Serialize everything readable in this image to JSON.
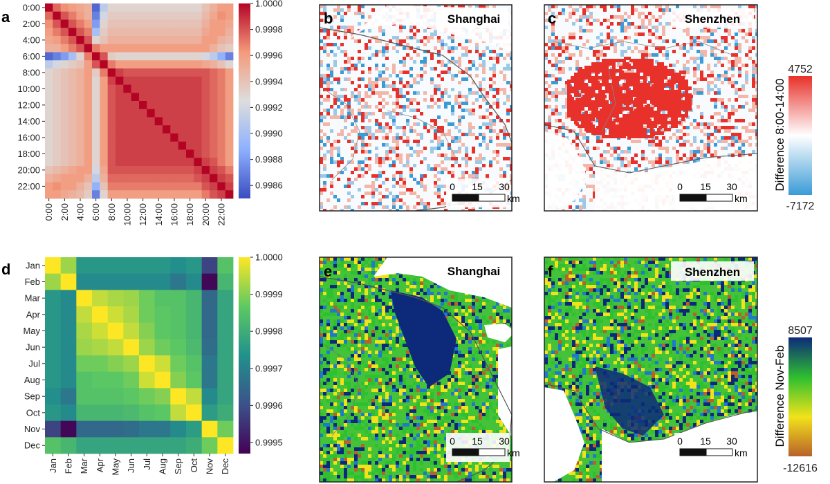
{
  "figure": {
    "panels": {
      "a": "a",
      "b": "b",
      "c": "c",
      "d": "d",
      "e": "e",
      "f": "f"
    },
    "maps": {
      "b": {
        "city": "Shanghai"
      },
      "c": {
        "city": "Shenzhen"
      },
      "e": {
        "city": "Shanghai"
      },
      "f": {
        "city": "Shenzhen"
      }
    },
    "scalebar": {
      "ticks": [
        "0",
        "15",
        "30"
      ],
      "unit": "km"
    },
    "colorbar_top": {
      "label": "Difference 8:00-14:00",
      "max": "4752",
      "min": "-7172",
      "colors": [
        "#3a9bd6",
        "#ffffff",
        "#e8312a"
      ]
    },
    "colorbar_bottom": {
      "label": "Difference Nov-Feb",
      "max": "8507",
      "min": "-12616",
      "colors": [
        "#b8612a",
        "#f2e21a",
        "#2fc02f",
        "#0d2a7a"
      ]
    }
  },
  "chart_data": [
    {
      "panel": "a",
      "type": "heatmap",
      "categories": [
        "0:00",
        "1:00",
        "2:00",
        "3:00",
        "4:00",
        "5:00",
        "6:00",
        "7:00",
        "8:00",
        "9:00",
        "10:00",
        "11:00",
        "12:00",
        "13:00",
        "14:00",
        "15:00",
        "16:00",
        "17:00",
        "18:00",
        "19:00",
        "20:00",
        "21:00",
        "22:00",
        "23:00"
      ],
      "y_tick_labels": [
        "0:00",
        "2:00",
        "4:00",
        "6:00",
        "8:00",
        "10:00",
        "12:00",
        "14:00",
        "16:00",
        "18:00",
        "20:00",
        "22:00"
      ],
      "x_tick_labels": [
        "0:00",
        "2:00",
        "4:00",
        "6:00",
        "8:00",
        "10:00",
        "12:00",
        "14:00",
        "16:00",
        "18:00",
        "20:00",
        "22:00"
      ],
      "colorbar": {
        "min": 0.9985,
        "max": 1.0,
        "ticks": [
          "1.0000",
          "0.9998",
          "0.9996",
          "0.9994",
          "0.9992",
          "0.9990",
          "0.9988",
          "0.9986"
        ],
        "colormap": "coolwarm"
      },
      "values": [
        [
          1,
          0.99975,
          0.99965,
          0.9996,
          0.99955,
          0.9995,
          0.9986,
          0.9991,
          0.9993,
          0.9993,
          0.9993,
          0.9993,
          0.9993,
          0.9993,
          0.9993,
          0.9993,
          0.9993,
          0.9993,
          0.9993,
          0.9993,
          0.9994,
          0.9995,
          0.9996,
          0.9996
        ],
        [
          0.99975,
          1,
          0.9998,
          0.9997,
          0.9996,
          0.9995,
          0.9987,
          0.9992,
          0.99935,
          0.99935,
          0.99935,
          0.99935,
          0.99935,
          0.99935,
          0.99935,
          0.99935,
          0.99935,
          0.99935,
          0.99935,
          0.99935,
          0.99945,
          0.99955,
          0.99965,
          0.9996
        ],
        [
          0.99965,
          0.9998,
          1,
          0.9998,
          0.9997,
          0.9996,
          0.9988,
          0.9993,
          0.9994,
          0.9994,
          0.9994,
          0.9994,
          0.9994,
          0.9994,
          0.9994,
          0.9994,
          0.9994,
          0.9994,
          0.9994,
          0.9994,
          0.9995,
          0.9996,
          0.9996,
          0.99955
        ],
        [
          0.9996,
          0.9997,
          0.9998,
          1,
          0.9998,
          0.9997,
          0.999,
          0.99935,
          0.99945,
          0.99945,
          0.99945,
          0.99945,
          0.99945,
          0.99945,
          0.99945,
          0.99945,
          0.99945,
          0.99945,
          0.99945,
          0.99945,
          0.99955,
          0.9996,
          0.9996,
          0.9995
        ],
        [
          0.99955,
          0.9996,
          0.9997,
          0.9998,
          1,
          0.9998,
          0.9993,
          0.9994,
          0.9995,
          0.9995,
          0.9995,
          0.9995,
          0.9995,
          0.9995,
          0.9995,
          0.9995,
          0.9995,
          0.9995,
          0.9995,
          0.9995,
          0.9996,
          0.9996,
          0.9995,
          0.99945
        ],
        [
          0.9995,
          0.9995,
          0.9996,
          0.9997,
          0.9998,
          1,
          0.9997,
          0.9996,
          0.9996,
          0.9996,
          0.9996,
          0.9996,
          0.9996,
          0.9996,
          0.9996,
          0.9996,
          0.9996,
          0.9996,
          0.9996,
          0.9996,
          0.9996,
          0.9995,
          0.9994,
          0.99935
        ],
        [
          0.9986,
          0.9987,
          0.9988,
          0.999,
          0.9993,
          0.9997,
          1,
          0.9998,
          0.99935,
          0.9993,
          0.9993,
          0.9993,
          0.9993,
          0.9993,
          0.9993,
          0.9993,
          0.9993,
          0.9993,
          0.9993,
          0.9993,
          0.9992,
          0.9991,
          0.9989,
          0.9987
        ],
        [
          0.9991,
          0.9992,
          0.9993,
          0.99935,
          0.9994,
          0.9996,
          0.9998,
          1,
          0.9997,
          0.9996,
          0.9996,
          0.9996,
          0.9996,
          0.9996,
          0.9996,
          0.9996,
          0.9996,
          0.9996,
          0.9996,
          0.9996,
          0.99955,
          0.9995,
          0.9994,
          0.9993
        ],
        [
          0.9993,
          0.99935,
          0.9994,
          0.99945,
          0.9995,
          0.9996,
          0.99935,
          0.9997,
          1,
          0.99985,
          0.9998,
          0.9998,
          0.9998,
          0.9998,
          0.9998,
          0.9998,
          0.9998,
          0.9998,
          0.9998,
          0.9998,
          0.9998,
          0.99975,
          0.9997,
          0.9996
        ],
        [
          0.9993,
          0.99935,
          0.9994,
          0.99945,
          0.9995,
          0.9996,
          0.9993,
          0.9996,
          0.99985,
          1,
          0.99985,
          0.99985,
          0.99985,
          0.99985,
          0.99985,
          0.99985,
          0.99985,
          0.99985,
          0.99985,
          0.99985,
          0.9998,
          0.99975,
          0.9997,
          0.9996
        ],
        [
          0.9993,
          0.99935,
          0.9994,
          0.99945,
          0.9995,
          0.9996,
          0.9993,
          0.9996,
          0.9998,
          0.99985,
          1,
          0.99985,
          0.99985,
          0.99985,
          0.99985,
          0.99985,
          0.99985,
          0.99985,
          0.99985,
          0.99985,
          0.9998,
          0.99975,
          0.9997,
          0.9996
        ],
        [
          0.9993,
          0.99935,
          0.9994,
          0.99945,
          0.9995,
          0.9996,
          0.9993,
          0.9996,
          0.9998,
          0.99985,
          0.99985,
          1,
          0.99985,
          0.99985,
          0.99985,
          0.99985,
          0.99985,
          0.99985,
          0.99985,
          0.99985,
          0.9998,
          0.99975,
          0.9997,
          0.9996
        ],
        [
          0.9993,
          0.99935,
          0.9994,
          0.99945,
          0.9995,
          0.9996,
          0.9993,
          0.9996,
          0.9998,
          0.99985,
          0.99985,
          0.99985,
          1,
          0.99985,
          0.99985,
          0.99985,
          0.99985,
          0.99985,
          0.99985,
          0.99985,
          0.9998,
          0.99975,
          0.9997,
          0.9996
        ],
        [
          0.9993,
          0.99935,
          0.9994,
          0.99945,
          0.9995,
          0.9996,
          0.9993,
          0.9996,
          0.9998,
          0.99985,
          0.99985,
          0.99985,
          0.99985,
          1,
          0.99985,
          0.99985,
          0.99985,
          0.99985,
          0.99985,
          0.99985,
          0.9998,
          0.99975,
          0.9997,
          0.9996
        ],
        [
          0.9993,
          0.99935,
          0.9994,
          0.99945,
          0.9995,
          0.9996,
          0.9993,
          0.9996,
          0.9998,
          0.99985,
          0.99985,
          0.99985,
          0.99985,
          0.99985,
          1,
          0.99985,
          0.99985,
          0.99985,
          0.99985,
          0.99985,
          0.9998,
          0.99975,
          0.9997,
          0.9996
        ],
        [
          0.9993,
          0.99935,
          0.9994,
          0.99945,
          0.9995,
          0.9996,
          0.9993,
          0.9996,
          0.9998,
          0.99985,
          0.99985,
          0.99985,
          0.99985,
          0.99985,
          0.99985,
          1,
          0.99985,
          0.99985,
          0.99985,
          0.99985,
          0.9998,
          0.99975,
          0.9997,
          0.9996
        ],
        [
          0.9993,
          0.99935,
          0.9994,
          0.99945,
          0.9995,
          0.9996,
          0.9993,
          0.9996,
          0.9998,
          0.99985,
          0.99985,
          0.99985,
          0.99985,
          0.99985,
          0.99985,
          0.99985,
          1,
          0.99985,
          0.99985,
          0.99985,
          0.9998,
          0.99975,
          0.9997,
          0.9996
        ],
        [
          0.9993,
          0.99935,
          0.9994,
          0.99945,
          0.9995,
          0.9996,
          0.9993,
          0.9996,
          0.9998,
          0.99985,
          0.99985,
          0.99985,
          0.99985,
          0.99985,
          0.99985,
          0.99985,
          0.99985,
          1,
          0.99985,
          0.99985,
          0.9998,
          0.99975,
          0.9997,
          0.9996
        ],
        [
          0.9993,
          0.99935,
          0.9994,
          0.99945,
          0.9995,
          0.9996,
          0.9993,
          0.9996,
          0.9998,
          0.99985,
          0.99985,
          0.99985,
          0.99985,
          0.99985,
          0.99985,
          0.99985,
          0.99985,
          0.99985,
          1,
          0.99985,
          0.9998,
          0.99975,
          0.9997,
          0.9996
        ],
        [
          0.9993,
          0.99935,
          0.9994,
          0.99945,
          0.9995,
          0.9996,
          0.9993,
          0.9996,
          0.9998,
          0.99985,
          0.99985,
          0.99985,
          0.99985,
          0.99985,
          0.99985,
          0.99985,
          0.99985,
          0.99985,
          0.99985,
          1,
          0.99985,
          0.9998,
          0.9997,
          0.9996
        ],
        [
          0.9994,
          0.99945,
          0.9995,
          0.99955,
          0.9996,
          0.9996,
          0.9992,
          0.99955,
          0.9998,
          0.9998,
          0.9998,
          0.9998,
          0.9998,
          0.9998,
          0.9998,
          0.9998,
          0.9998,
          0.9998,
          0.9998,
          0.99985,
          1,
          0.99985,
          0.9998,
          0.9997
        ],
        [
          0.9995,
          0.99955,
          0.9996,
          0.9996,
          0.9996,
          0.9995,
          0.9991,
          0.9995,
          0.99975,
          0.99975,
          0.99975,
          0.99975,
          0.99975,
          0.99975,
          0.99975,
          0.99975,
          0.99975,
          0.99975,
          0.99975,
          0.9998,
          0.99985,
          1,
          0.99985,
          0.9998
        ],
        [
          0.9996,
          0.99965,
          0.9996,
          0.9996,
          0.9995,
          0.9994,
          0.9989,
          0.9994,
          0.9997,
          0.9997,
          0.9997,
          0.9997,
          0.9997,
          0.9997,
          0.9997,
          0.9997,
          0.9997,
          0.9997,
          0.9997,
          0.9997,
          0.9998,
          0.99985,
          1,
          0.99985
        ],
        [
          0.9996,
          0.9996,
          0.99955,
          0.9995,
          0.99945,
          0.99935,
          0.9987,
          0.9993,
          0.9996,
          0.9996,
          0.9996,
          0.9996,
          0.9996,
          0.9996,
          0.9996,
          0.9996,
          0.9996,
          0.9996,
          0.9996,
          0.9996,
          0.9997,
          0.9998,
          0.99985,
          1
        ]
      ]
    },
    {
      "panel": "d",
      "type": "heatmap",
      "categories": [
        "Jan",
        "Feb",
        "Mar",
        "Apr",
        "May",
        "Jun",
        "Jul",
        "Aug",
        "Sep",
        "Oct",
        "Nov",
        "Dec"
      ],
      "colorbar": {
        "min": 0.99947,
        "max": 1.0,
        "ticks": [
          "1.0000",
          "0.9999",
          "0.9998",
          "0.9997",
          "0.9996",
          "0.9995"
        ],
        "colormap": "viridis"
      },
      "values": [
        [
          1,
          0.99992,
          0.99975,
          0.99975,
          0.99975,
          0.99975,
          0.99975,
          0.99975,
          0.99973,
          0.99975,
          0.99958,
          0.99985
        ],
        [
          0.99992,
          1,
          0.99972,
          0.99972,
          0.99972,
          0.99972,
          0.99972,
          0.99972,
          0.99968,
          0.99972,
          0.99948,
          0.99982
        ],
        [
          0.99975,
          0.99972,
          1,
          0.99995,
          0.99993,
          0.99992,
          0.99988,
          0.99985,
          0.99985,
          0.99982,
          0.99965,
          0.99978
        ],
        [
          0.99975,
          0.99972,
          0.99995,
          1,
          0.99996,
          0.99993,
          0.99988,
          0.99986,
          0.99985,
          0.99982,
          0.99965,
          0.99978
        ],
        [
          0.99975,
          0.99972,
          0.99993,
          0.99996,
          1,
          0.99995,
          0.9999,
          0.99986,
          0.99985,
          0.99982,
          0.99965,
          0.99978
        ],
        [
          0.99975,
          0.99972,
          0.99992,
          0.99993,
          0.99995,
          1,
          0.99992,
          0.99988,
          0.99986,
          0.99983,
          0.99966,
          0.99978
        ],
        [
          0.99975,
          0.99972,
          0.99988,
          0.99988,
          0.9999,
          0.99992,
          1,
          0.99996,
          0.99988,
          0.99985,
          0.99968,
          0.99978
        ],
        [
          0.99975,
          0.99972,
          0.99985,
          0.99986,
          0.99986,
          0.99988,
          0.99996,
          1,
          0.9999,
          0.99986,
          0.99968,
          0.99978
        ],
        [
          0.99973,
          0.99968,
          0.99985,
          0.99985,
          0.99985,
          0.99986,
          0.99988,
          0.9999,
          1,
          0.99995,
          0.99972,
          0.99978
        ],
        [
          0.99975,
          0.99972,
          0.99982,
          0.99982,
          0.99982,
          0.99983,
          0.99985,
          0.99986,
          0.99995,
          1,
          0.99976,
          0.9998
        ],
        [
          0.99958,
          0.99948,
          0.99965,
          0.99965,
          0.99965,
          0.99966,
          0.99968,
          0.99968,
          0.99972,
          0.99976,
          1,
          0.99988
        ],
        [
          0.99985,
          0.99982,
          0.99978,
          0.99978,
          0.99978,
          0.99978,
          0.99978,
          0.99978,
          0.99978,
          0.9998,
          0.99988,
          1
        ]
      ]
    }
  ]
}
